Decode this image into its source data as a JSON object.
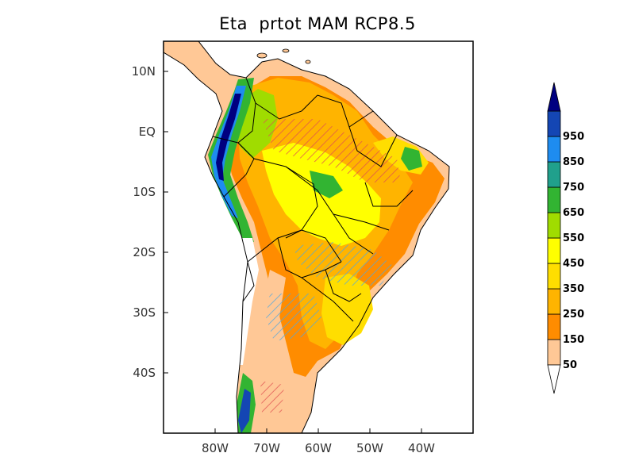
{
  "title": "Eta  prtot MAM RCP8.5",
  "map": {
    "lat_labels": [
      "10N",
      "EQ",
      "10S",
      "20S",
      "30S",
      "40S"
    ],
    "lon_labels": [
      "80W",
      "70W",
      "60W",
      "50W",
      "40W"
    ],
    "lat_values": [
      10,
      0,
      -10,
      -20,
      -30,
      -40
    ],
    "lon_values": [
      -80,
      -70,
      -60,
      -50,
      -40
    ],
    "extent": {
      "lon_min": -90,
      "lon_max": -30,
      "lat_min": -50,
      "lat_max": 15
    }
  },
  "colorbar": {
    "labels": [
      "50",
      "150",
      "250",
      "350",
      "450",
      "550",
      "650",
      "750",
      "850",
      "950"
    ],
    "colors": [
      "#ffc896",
      "#ff8c00",
      "#ffb400",
      "#ffde00",
      "#ffff00",
      "#a0dc00",
      "#32b432",
      "#20a08c",
      "#1e8cf0",
      "#1446b4",
      "#000080"
    ],
    "min_arrow_color": "#ffffff",
    "max_arrow_color": "#000080"
  }
}
